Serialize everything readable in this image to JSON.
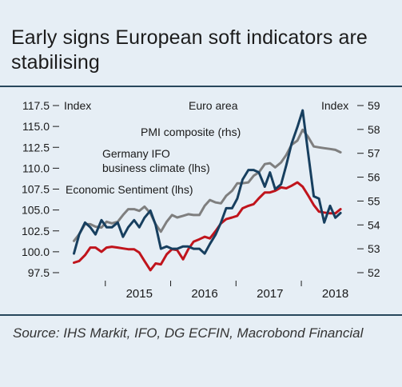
{
  "title": "Early signs European soft indicators are stabilising",
  "source": "Source: IHS Markit, IFO, DG ECFIN, Macrobond Financial",
  "chart_data": {
    "type": "line",
    "region_label": "Euro area",
    "left_axis": {
      "label": "Index",
      "ylim": [
        97.5,
        117.5
      ],
      "ticks": [
        "117.5",
        "115.0",
        "112.5",
        "110.0",
        "107.5",
        "105.0",
        "102.5",
        "100.0",
        "97.5"
      ]
    },
    "right_axis": {
      "label": "Index",
      "ylim": [
        52,
        59
      ],
      "ticks": [
        "59",
        "58",
        "57",
        "56",
        "55",
        "54",
        "53",
        "52"
      ]
    },
    "x_tick_labels": [
      "2015",
      "2016",
      "2017",
      "2018"
    ],
    "x_range": [
      2014.42,
      2018.75
    ],
    "series": [
      {
        "name": "PMI composite (rhs)",
        "axis": "right",
        "color": "#173f5f",
        "x": [
          2014.5,
          2014.58,
          2014.67,
          2014.75,
          2014.83,
          2014.92,
          2015.0,
          2015.08,
          2015.17,
          2015.25,
          2015.33,
          2015.42,
          2015.5,
          2015.58,
          2015.67,
          2015.75,
          2015.83,
          2015.92,
          2016.0,
          2016.08,
          2016.17,
          2016.25,
          2016.33,
          2016.42,
          2016.5,
          2016.58,
          2016.67,
          2016.75,
          2016.83,
          2016.92,
          2017.0,
          2017.08,
          2017.17,
          2017.25,
          2017.33,
          2017.42,
          2017.5,
          2017.58,
          2017.67,
          2017.75,
          2017.83,
          2017.92,
          2018.0,
          2018.08,
          2018.17,
          2018.25,
          2018.33,
          2018.42,
          2018.5,
          2018.58
        ],
        "y": [
          52.8,
          53.6,
          54.1,
          53.9,
          53.6,
          54.2,
          53.9,
          53.9,
          54.1,
          53.5,
          53.9,
          54.2,
          53.9,
          54.3,
          54.6,
          54.0,
          53.0,
          53.1,
          53.0,
          53.0,
          53.1,
          53.1,
          53.0,
          53.0,
          52.8,
          53.2,
          53.6,
          54.1,
          54.7,
          54.7,
          55.1,
          55.9,
          56.3,
          56.3,
          56.2,
          55.6,
          56.2,
          55.5,
          55.7,
          56.5,
          57.4,
          58.1,
          58.8,
          57.1,
          55.2,
          55.1,
          54.1,
          54.8,
          54.3,
          54.5
        ]
      },
      {
        "name": "Germany IFO business climate (lhs)",
        "axis": "left",
        "color": "#c0141c",
        "x": [
          2014.5,
          2014.58,
          2014.67,
          2014.75,
          2014.83,
          2014.92,
          2015.0,
          2015.08,
          2015.17,
          2015.25,
          2015.33,
          2015.42,
          2015.5,
          2015.58,
          2015.67,
          2015.75,
          2015.83,
          2015.92,
          2016.0,
          2016.08,
          2016.17,
          2016.25,
          2016.33,
          2016.42,
          2016.5,
          2016.58,
          2016.67,
          2016.75,
          2016.83,
          2016.92,
          2017.0,
          2017.08,
          2017.17,
          2017.25,
          2017.33,
          2017.42,
          2017.5,
          2017.58,
          2017.67,
          2017.75,
          2017.83,
          2017.92,
          2018.0,
          2018.08,
          2018.17,
          2018.25,
          2018.33,
          2018.42,
          2018.5,
          2018.58
        ],
        "y": [
          98.7,
          98.9,
          99.6,
          100.5,
          100.5,
          100.0,
          100.5,
          100.6,
          100.5,
          100.4,
          100.3,
          100.3,
          99.9,
          98.9,
          97.8,
          98.6,
          98.5,
          99.7,
          100.3,
          100.2,
          99.1,
          100.3,
          101.2,
          101.5,
          101.8,
          101.6,
          102.5,
          103.4,
          103.9,
          104.1,
          104.3,
          105.2,
          105.5,
          105.7,
          106.4,
          107.1,
          107.1,
          107.3,
          107.7,
          107.6,
          107.9,
          108.3,
          107.8,
          106.8,
          105.6,
          104.8,
          104.7,
          104.6,
          104.6,
          105.1
        ]
      },
      {
        "name": "Economic Sentiment (lhs)",
        "axis": "left",
        "color": "#7f7f7f",
        "x": [
          2014.5,
          2014.58,
          2014.67,
          2014.75,
          2014.83,
          2014.92,
          2015.0,
          2015.08,
          2015.17,
          2015.25,
          2015.33,
          2015.42,
          2015.5,
          2015.58,
          2015.67,
          2015.75,
          2015.83,
          2015.92,
          2016.0,
          2016.08,
          2016.17,
          2016.25,
          2016.33,
          2016.42,
          2016.5,
          2016.58,
          2016.67,
          2016.75,
          2016.83,
          2016.92,
          2017.0,
          2017.08,
          2017.17,
          2017.25,
          2017.33,
          2017.42,
          2017.5,
          2017.58,
          2017.67,
          2017.75,
          2017.83,
          2017.92,
          2018.0,
          2018.08,
          2018.17,
          2018.25,
          2018.33,
          2018.42,
          2018.5,
          2018.58
        ],
        "y": [
          101.3,
          102.1,
          103.3,
          103.3,
          103.0,
          102.9,
          103.6,
          103.4,
          103.6,
          104.4,
          105.1,
          105.1,
          104.9,
          105.4,
          104.6,
          103.3,
          102.4,
          103.6,
          104.4,
          104.1,
          104.3,
          104.5,
          104.4,
          104.4,
          105.5,
          106.2,
          105.9,
          105.8,
          106.7,
          107.3,
          108.2,
          108.2,
          108.3,
          109.1,
          109.5,
          110.5,
          110.6,
          110.1,
          110.7,
          111.6,
          112.8,
          113.3,
          114.6,
          113.8,
          112.6,
          112.5,
          112.4,
          112.3,
          112.2,
          111.9
        ]
      }
    ],
    "annotations": [
      {
        "text": "PMI composite (rhs)",
        "series": 0
      },
      {
        "text": "Germany IFO",
        "series": 1
      },
      {
        "text": "business climate (lhs)",
        "series": 1
      },
      {
        "text": "Economic Sentiment (lhs)",
        "series": 2
      }
    ],
    "grid": false,
    "legend": "none"
  }
}
